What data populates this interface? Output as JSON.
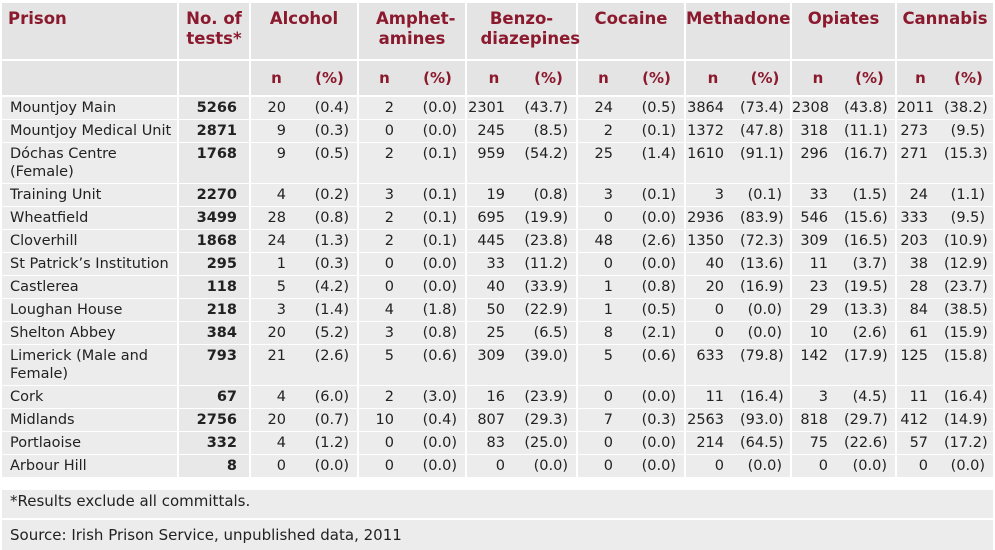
{
  "header": {
    "prison": "Prison",
    "tests": "No. of tests*",
    "drugs": [
      "Alcohol",
      "Amphet-amines",
      "Benzo-diazepines",
      "Cocaine",
      "Methadone",
      "Opiates",
      "Cannabis"
    ],
    "n_label": "n",
    "pct_label": "(%)"
  },
  "rows": [
    {
      "name": "Mountjoy Main",
      "tests": "5266",
      "cells": [
        "20",
        "(0.4)",
        "2",
        "(0.0)",
        "2301",
        "(43.7)",
        "24",
        "(0.5)",
        "3864",
        "(73.4)",
        "2308",
        "(43.8)",
        "2011",
        "(38.2)"
      ]
    },
    {
      "name": "Mountjoy Medical Unit",
      "tests": "2871",
      "cells": [
        "9",
        "(0.3)",
        "0",
        "(0.0)",
        "245",
        "(8.5)",
        "2",
        "(0.1)",
        "1372",
        "(47.8)",
        "318",
        "(11.1)",
        "273",
        "(9.5)"
      ]
    },
    {
      "name": "Dóchas Centre (Female)",
      "tests": "1768",
      "cells": [
        "9",
        "(0.5)",
        "2",
        "(0.1)",
        "959",
        "(54.2)",
        "25",
        "(1.4)",
        "1610",
        "(91.1)",
        "296",
        "(16.7)",
        "271",
        "(15.3)"
      ]
    },
    {
      "name": "Training Unit",
      "tests": "2270",
      "cells": [
        "4",
        "(0.2)",
        "3",
        "(0.1)",
        "19",
        "(0.8)",
        "3",
        "(0.1)",
        "3",
        "(0.1)",
        "33",
        "(1.5)",
        "24",
        "(1.1)"
      ]
    },
    {
      "name": "Wheatfield",
      "tests": "3499",
      "cells": [
        "28",
        "(0.8)",
        "2",
        "(0.1)",
        "695",
        "(19.9)",
        "0",
        "(0.0)",
        "2936",
        "(83.9)",
        "546",
        "(15.6)",
        "333",
        "(9.5)"
      ]
    },
    {
      "name": "Cloverhill",
      "tests": "1868",
      "cells": [
        "24",
        "(1.3)",
        "2",
        "(0.1)",
        "445",
        "(23.8)",
        "48",
        "(2.6)",
        "1350",
        "(72.3)",
        "309",
        "(16.5)",
        "203",
        "(10.9)"
      ]
    },
    {
      "name": "St Patrick’s Institution",
      "tests": "295",
      "cells": [
        "1",
        "(0.3)",
        "0",
        "(0.0)",
        "33",
        "(11.2)",
        "0",
        "(0.0)",
        "40",
        "(13.6)",
        "11",
        "(3.7)",
        "38",
        "(12.9)"
      ]
    },
    {
      "name": "Castlerea",
      "tests": "118",
      "cells": [
        "5",
        "(4.2)",
        "0",
        "(0.0)",
        "40",
        "(33.9)",
        "1",
        "(0.8)",
        "20",
        "(16.9)",
        "23",
        "(19.5)",
        "28",
        "(23.7)"
      ]
    },
    {
      "name": "Loughan House",
      "tests": "218",
      "cells": [
        "3",
        "(1.4)",
        "4",
        "(1.8)",
        "50",
        "(22.9)",
        "1",
        "(0.5)",
        "0",
        "(0.0)",
        "29",
        "(13.3)",
        "84",
        "(38.5)"
      ]
    },
    {
      "name": "Shelton Abbey",
      "tests": "384",
      "cells": [
        "20",
        "(5.2)",
        "3",
        "(0.8)",
        "25",
        "(6.5)",
        "8",
        "(2.1)",
        "0",
        "(0.0)",
        "10",
        "(2.6)",
        "61",
        "(15.9)"
      ]
    },
    {
      "name": "Limerick (Male and Female)",
      "tests": "793",
      "cells": [
        "21",
        "(2.6)",
        "5",
        "(0.6)",
        "309",
        "(39.0)",
        "5",
        "(0.6)",
        "633",
        "(79.8)",
        "142",
        "(17.9)",
        "125",
        "(15.8)"
      ]
    },
    {
      "name": "Cork",
      "tests": "67",
      "cells": [
        "4",
        "(6.0)",
        "2",
        "(3.0)",
        "16",
        "(23.9)",
        "0",
        "(0.0)",
        "11",
        "(16.4)",
        "3",
        "(4.5)",
        "11",
        "(16.4)"
      ]
    },
    {
      "name": "Midlands",
      "tests": "2756",
      "cells": [
        "20",
        "(0.7)",
        "10",
        "(0.4)",
        "807",
        "(29.3)",
        "7",
        "(0.3)",
        "2563",
        "(93.0)",
        "818",
        "(29.7)",
        "412",
        "(14.9)"
      ]
    },
    {
      "name": "Portlaoise",
      "tests": "332",
      "cells": [
        "4",
        "(1.2)",
        "0",
        "(0.0)",
        "83",
        "(25.0)",
        "0",
        "(0.0)",
        "214",
        "(64.5)",
        "75",
        "(22.6)",
        "57",
        "(17.2)"
      ]
    },
    {
      "name": "Arbour Hill",
      "tests": "8",
      "cells": [
        "0",
        "(0.0)",
        "0",
        "(0.0)",
        "0",
        "(0.0)",
        "0",
        "(0.0)",
        "0",
        "(0.0)",
        "0",
        "(0.0)",
        "0",
        "(0.0)"
      ]
    }
  ],
  "footnote": "*Results exclude all committals.",
  "source": "Source: Irish Prison Service, unpublished data, 2011"
}
